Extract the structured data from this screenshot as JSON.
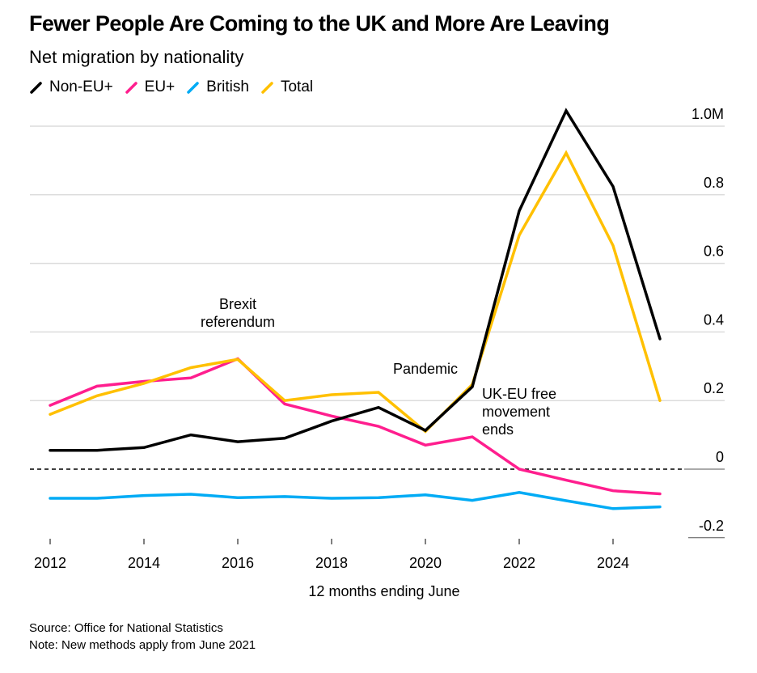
{
  "header": {
    "title": "Fewer People Are Coming to the UK and More Are Leaving",
    "subtitle": "Net migration by nationality"
  },
  "legend": [
    {
      "label": "Non-EU+",
      "color": "#000000"
    },
    {
      "label": "EU+",
      "color": "#FF1E8E"
    },
    {
      "label": "British",
      "color": "#00ABF5"
    },
    {
      "label": "Total",
      "color": "#FFC000"
    }
  ],
  "footer": {
    "source": "Source: Office for National Statistics",
    "note": "Note: New methods apply from June 2021"
  },
  "chart_data": {
    "type": "line",
    "title": "Fewer People Are Coming to the UK and More Are Leaving",
    "subtitle": "Net migration by nationality",
    "xlabel": "12 months ending June",
    "ylabel": "",
    "x": [
      2012,
      2013,
      2014,
      2015,
      2016,
      2017,
      2018,
      2019,
      2020,
      2021,
      2022,
      2023,
      2024,
      2025
    ],
    "xlim": [
      2012,
      2025
    ],
    "ylim": [
      -0.2,
      1.0
    ],
    "y_unit": "M",
    "x_ticks": [
      2012,
      2014,
      2016,
      2018,
      2020,
      2022,
      2024
    ],
    "x_tick_labels": [
      "2012",
      "2014",
      "2016",
      "2018",
      "2020",
      "2022",
      "2024"
    ],
    "y_ticks": [
      1.0,
      0.8,
      0.6,
      0.4,
      0.2,
      0,
      -0.2
    ],
    "y_tick_labels": [
      "1.0M",
      "0.8",
      "0.6",
      "0.4",
      "0.2",
      "0",
      "-0.2"
    ],
    "y_axis_side": "right",
    "grid": true,
    "zero_line": "dashed",
    "legend_position": "top-left",
    "series": [
      {
        "name": "Non-EU+",
        "color": "#000000",
        "values": [
          0.055,
          0.055,
          0.063,
          0.1,
          0.08,
          0.09,
          0.14,
          0.18,
          0.113,
          0.24,
          0.753,
          1.045,
          0.824,
          0.38
        ]
      },
      {
        "name": "EU+",
        "color": "#FF1E8E",
        "values": [
          0.186,
          0.242,
          0.256,
          0.266,
          0.322,
          0.19,
          0.155,
          0.125,
          0.07,
          0.094,
          0.0,
          -0.032,
          -0.063,
          -0.072
        ]
      },
      {
        "name": "British",
        "color": "#00ABF5",
        "values": [
          -0.085,
          -0.085,
          -0.077,
          -0.073,
          -0.083,
          -0.08,
          -0.085,
          -0.083,
          -0.075,
          -0.091,
          -0.068,
          -0.092,
          -0.115,
          -0.11
        ]
      },
      {
        "name": "Total",
        "color": "#FFC000",
        "values": [
          0.16,
          0.214,
          0.25,
          0.296,
          0.32,
          0.2,
          0.217,
          0.224,
          0.11,
          0.247,
          0.682,
          0.922,
          0.652,
          0.2
        ]
      }
    ],
    "annotations": [
      {
        "text_lines": [
          "Brexit",
          "referendum"
        ],
        "x": 2016,
        "anchor": "middle"
      },
      {
        "text_lines": [
          "Pandemic"
        ],
        "x": 2020,
        "anchor": "middle"
      },
      {
        "text_lines": [
          "UK-EU free",
          "movement",
          "ends"
        ],
        "x": 2021,
        "anchor": "start"
      }
    ]
  }
}
